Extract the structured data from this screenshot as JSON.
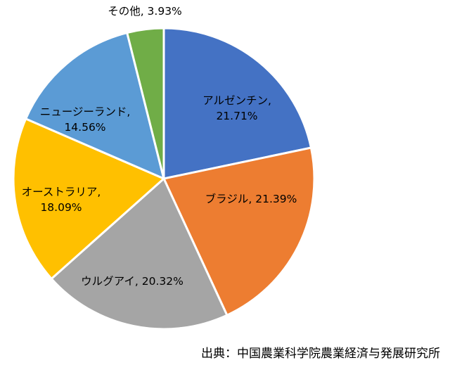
{
  "chart_data": {
    "type": "pie",
    "title": "",
    "start": "12 o'clock",
    "direction": "clockwise",
    "slices": [
      {
        "label": "アルゼンチン",
        "value": 21.71,
        "value_text": "21.71%",
        "color": "#4472C4"
      },
      {
        "label": "ブラジル",
        "value": 21.39,
        "value_text": "21.39%",
        "color": "#ED7D31"
      },
      {
        "label": "ウルグアイ",
        "value": 20.32,
        "value_text": "20.32%",
        "color": "#A5A5A5"
      },
      {
        "label": "オーストラリア",
        "value": 18.09,
        "value_text": "18.09%",
        "color": "#FFC000"
      },
      {
        "label": "ニュージーランド",
        "value": 14.56,
        "value_text": "14.56%",
        "color": "#5B9BD5"
      },
      {
        "label": "その他",
        "value": 3.93,
        "value_text": "3.93%",
        "color": "#70AD47"
      }
    ]
  },
  "source": "出典：中国農業科学院農業経済与発展研究所"
}
